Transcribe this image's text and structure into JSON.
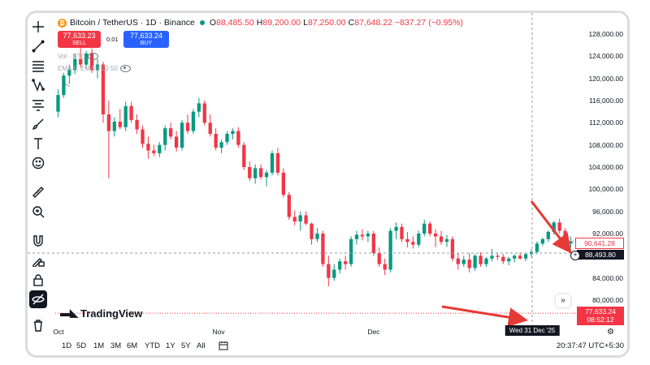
{
  "header": {
    "symbol": "Bitcoin / TetherUS · 1D · Binance",
    "btc_glyph": "₿",
    "ohlc": [
      {
        "label": "O",
        "value": "88,485.50"
      },
      {
        "label": "H",
        "value": "89,200.00"
      },
      {
        "label": "L",
        "value": "87,250.00"
      },
      {
        "label": "C",
        "value": "87,648.22"
      }
    ],
    "change": "−837.27 (−0.95%)"
  },
  "trade": {
    "sell_price": "77,633.23",
    "sell_label": "SELL",
    "buy_price": "77,633.24",
    "buy_label": "BUY",
    "spread": "0.01"
  },
  "indicators": {
    "vol": "Vol · BTC",
    "ema": "EMA 9, EMA 9 20 50"
  },
  "toolbar": {
    "icons": [
      "crosshair-icon",
      "trend-line-icon",
      "fib-icon",
      "pattern-icon",
      "forecast-icon",
      "brush-icon",
      "text-icon",
      "emoji-icon",
      "ruler-icon",
      "zoom-in-icon",
      "magnet-icon",
      "lock-drawing-icon",
      "lock-icon",
      "hide-icon",
      "trash-icon"
    ]
  },
  "price_axis": {
    "ticks": [
      "128,000.00",
      "124,000.00",
      "120,000.00",
      "116,000.00",
      "112,000.00",
      "108,000.00",
      "104,000.00",
      "100,000.00",
      "96,000.00",
      "92,000.00",
      "84,000.00",
      "80,000.00"
    ],
    "last_price": "90,641.28",
    "crosshair_price": "88,493.80",
    "alert_price": "77,633.24",
    "alert_countdown": "08:52:12"
  },
  "time_axis": {
    "ticks": [
      "Oct",
      "Nov",
      "Dec"
    ],
    "crosshair_date": "Wed 31 Dec '25"
  },
  "bottom": {
    "ranges": [
      "1D",
      "5D",
      "1M",
      "3M",
      "6M",
      "YTD",
      "1Y",
      "5Y",
      "All"
    ],
    "clock": "20:37:47 UTC+5:30"
  },
  "brand": "TradingView",
  "colors": {
    "up": "#089981",
    "down": "#f23645",
    "accent": "#2962ff",
    "annotation": "#e53935"
  },
  "chart_data": {
    "type": "candlestick",
    "title": "Bitcoin / TetherUS · 1D · Binance",
    "x_labels": [
      "Oct",
      "Nov",
      "Dec"
    ],
    "ylim": [
      77000,
      130000
    ],
    "candles": [
      [
        114000,
        118000,
        113000,
        117000
      ],
      [
        117000,
        121000,
        116500,
        120500
      ],
      [
        120500,
        122500,
        119000,
        121500
      ],
      [
        121500,
        124500,
        120800,
        123500
      ],
      [
        123500,
        125500,
        122000,
        122500
      ],
      [
        122500,
        125000,
        121800,
        124500
      ],
      [
        124500,
        125400,
        121000,
        121500
      ],
      [
        121500,
        123500,
        120000,
        122500
      ],
      [
        122500,
        123000,
        112000,
        113500
      ],
      [
        113500,
        116000,
        102000,
        110500
      ],
      [
        110500,
        113000,
        109500,
        112200
      ],
      [
        112200,
        114500,
        110800,
        111200
      ],
      [
        111200,
        115800,
        110500,
        115000
      ],
      [
        115000,
        115800,
        112000,
        112500
      ],
      [
        112500,
        113500,
        110000,
        110800
      ],
      [
        110800,
        111500,
        107500,
        108200
      ],
      [
        108200,
        109500,
        105500,
        107000
      ],
      [
        107000,
        108000,
        106000,
        106500
      ],
      [
        106500,
        108500,
        105800,
        108000
      ],
      [
        108000,
        111500,
        107000,
        111000
      ],
      [
        111000,
        112000,
        109000,
        109500
      ],
      [
        109500,
        110500,
        106800,
        107500
      ],
      [
        107500,
        112500,
        107000,
        112000
      ],
      [
        112000,
        113500,
        110000,
        110500
      ],
      [
        110500,
        114500,
        110000,
        114000
      ],
      [
        114000,
        116500,
        113000,
        115500
      ],
      [
        115500,
        116000,
        111500,
        112000
      ],
      [
        112000,
        113500,
        109500,
        110000
      ],
      [
        110000,
        111000,
        107000,
        107500
      ],
      [
        107500,
        109000,
        106500,
        108500
      ],
      [
        108500,
        110500,
        108000,
        110000
      ],
      [
        110000,
        111000,
        109000,
        110500
      ],
      [
        110500,
        111200,
        107500,
        108000
      ],
      [
        108000,
        108500,
        103500,
        104000
      ],
      [
        104000,
        105000,
        101500,
        102000
      ],
      [
        102000,
        104500,
        101000,
        103800
      ],
      [
        103800,
        104500,
        101800,
        102200
      ],
      [
        102200,
        103500,
        100500,
        103000
      ],
      [
        103000,
        107000,
        102500,
        106500
      ],
      [
        106500,
        107500,
        102500,
        103000
      ],
      [
        103000,
        103800,
        98500,
        99000
      ],
      [
        99000,
        99500,
        94500,
        95000
      ],
      [
        95000,
        96200,
        93500,
        94200
      ],
      [
        94200,
        96000,
        92500,
        95300
      ],
      [
        95300,
        96000,
        93500,
        93800
      ],
      [
        93800,
        94000,
        90000,
        91000
      ],
      [
        91000,
        93000,
        90500,
        92000
      ],
      [
        92000,
        92500,
        86000,
        86500
      ],
      [
        86500,
        88000,
        82500,
        84000
      ],
      [
        84000,
        86500,
        83500,
        85500
      ],
      [
        85500,
        87500,
        84800,
        87000
      ],
      [
        87000,
        88000,
        85500,
        86500
      ],
      [
        86500,
        91500,
        86000,
        91000
      ],
      [
        91000,
        92500,
        90000,
        91800
      ],
      [
        91800,
        92800,
        90800,
        91500
      ],
      [
        91500,
        92500,
        90500,
        92000
      ],
      [
        92000,
        92500,
        88000,
        88500
      ],
      [
        88500,
        89500,
        86000,
        86500
      ],
      [
        86500,
        87500,
        84500,
        85500
      ],
      [
        85500,
        93000,
        85000,
        92500
      ],
      [
        92500,
        94000,
        91000,
        93200
      ],
      [
        93200,
        93800,
        90500,
        91000
      ],
      [
        91000,
        92300,
        89500,
        90500
      ],
      [
        90500,
        91500,
        89300,
        90000
      ],
      [
        90000,
        92500,
        89500,
        92000
      ],
      [
        92000,
        94500,
        91500,
        93800
      ],
      [
        93800,
        94200,
        91500,
        92000
      ],
      [
        92000,
        92800,
        89500,
        91500
      ],
      [
        91500,
        92500,
        90000,
        90500
      ],
      [
        90500,
        91800,
        89600,
        91000
      ],
      [
        91000,
        91500,
        87000,
        87500
      ],
      [
        87500,
        88500,
        85500,
        86500
      ],
      [
        86500,
        88000,
        86000,
        87300
      ],
      [
        87300,
        88500,
        85000,
        85800
      ],
      [
        85800,
        88300,
        85300,
        88000
      ],
      [
        88000,
        88600,
        86000,
        86500
      ],
      [
        86500,
        87800,
        86000,
        87500
      ],
      [
        87500,
        89200,
        87000,
        88000
      ],
      [
        88000,
        88600,
        87200,
        87800
      ],
      [
        87800,
        88300,
        86500,
        87000
      ],
      [
        87000,
        87800,
        86300,
        87500
      ],
      [
        87500,
        88300,
        86800,
        88000
      ],
      [
        88000,
        88600,
        87300,
        87500
      ],
      [
        87500,
        88500,
        87000,
        88300
      ],
      [
        88300,
        89200,
        87800,
        88700
      ],
      [
        88700,
        90600,
        88300,
        90200
      ],
      [
        90200,
        91300,
        89800,
        91000
      ],
      [
        91000,
        92600,
        90500,
        92300
      ],
      [
        92300,
        94300,
        91800,
        94000
      ],
      [
        94000,
        94700,
        92000,
        92500
      ],
      [
        92500,
        93000,
        89800,
        90200
      ],
      [
        90200,
        91500,
        89500,
        90600
      ]
    ]
  }
}
